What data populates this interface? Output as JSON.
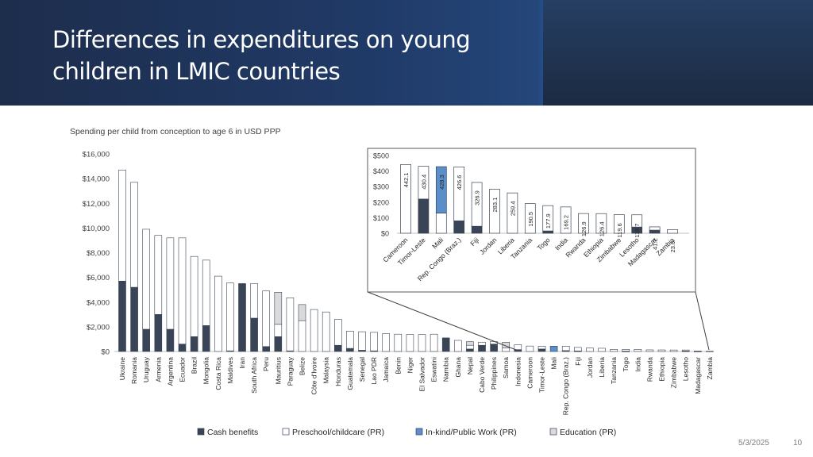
{
  "slide": {
    "title": "Differences in expenditures on young children in LMIC countries",
    "date": "5/3/2025",
    "page_number": "10"
  },
  "colors": {
    "cash": "#3a4457",
    "preschool": "#ffffff",
    "inkind": "#5b8fc9",
    "education": "#d9dadc"
  },
  "chart_data": [
    {
      "type": "bar",
      "stacked": true,
      "title": "Spending per child from conception to age 6 in USD PPP",
      "xlabel": "",
      "ylabel": "",
      "ylim": [
        0,
        16000
      ],
      "yticks": [
        "$0",
        "$2,000",
        "$4,000",
        "$6,000",
        "$8,000",
        "$10,000",
        "$12,000",
        "$14,000",
        "$16,000"
      ],
      "legend_position": "bottom",
      "categories": [
        "Ukraine",
        "Romania",
        "Uruguay",
        "Armenia",
        "Argentina",
        "Ecuador",
        "Brazil",
        "Mongolia",
        "Costa Rica",
        "Maldives",
        "Iran",
        "South Africa",
        "Peru",
        "Mauritius",
        "Paraguay",
        "Belize",
        "Côte d'Ivoire",
        "Malaysia",
        "Honduras",
        "Guatemala",
        "Senegal",
        "Lao PDR",
        "Jamaica",
        "Benin",
        "Niger",
        "El Salvador",
        "Eswatini",
        "Namibia",
        "Ghana",
        "Nepal",
        "Cabo Verde",
        "Philippines",
        "Samoa",
        "Indonesia",
        "Cameroon",
        "Timor-Leste",
        "Mali",
        "Rep. Congo (Braz.)",
        "Fiji",
        "Jordan",
        "Liberia",
        "Tanzania",
        "Togo",
        "India",
        "Rwanda",
        "Ethiopia",
        "Zimbabwe",
        "Lesotho",
        "Madagascar",
        "Zambia"
      ],
      "series": [
        {
          "name": "Cash benefits",
          "values": [
            5700,
            5200,
            1800,
            3000,
            1800,
            600,
            1200,
            2100,
            0,
            50,
            5500,
            2700,
            400,
            1200,
            50,
            0,
            0,
            0,
            500,
            250,
            100,
            50,
            0,
            0,
            0,
            0,
            0,
            1100,
            0,
            200,
            500,
            600,
            0,
            150,
            0,
            200,
            0,
            70,
            40,
            0,
            0,
            0,
            20,
            0,
            0,
            0,
            0,
            40,
            20,
            0
          ]
        },
        {
          "name": "Preschool/childcare (PR)",
          "values": [
            9000,
            8500,
            8100,
            6400,
            7400,
            8600,
            6500,
            5300,
            6100,
            5500,
            0,
            2800,
            4500,
            1000,
            4300,
            2500,
            3400,
            3200,
            2100,
            1400,
            1500,
            1500,
            1450,
            1400,
            1380,
            1380,
            1400,
            0,
            900,
            300,
            250,
            200,
            300,
            400,
            440,
            230,
            0,
            360,
            290,
            280,
            260,
            170,
            150,
            170,
            130,
            125,
            120,
            80,
            20,
            25
          ]
        },
        {
          "name": "In-kind/Public Work (PR)",
          "values": [
            0,
            0,
            0,
            0,
            0,
            0,
            0,
            0,
            0,
            0,
            0,
            0,
            0,
            0,
            0,
            0,
            0,
            0,
            0,
            0,
            0,
            0,
            0,
            0,
            0,
            0,
            0,
            0,
            0,
            0,
            0,
            0,
            0,
            0,
            0,
            0,
            430,
            0,
            0,
            0,
            0,
            0,
            0,
            0,
            0,
            0,
            0,
            0,
            0,
            0
          ]
        },
        {
          "name": "Education (PR)",
          "values": [
            0,
            0,
            0,
            0,
            0,
            0,
            0,
            0,
            0,
            0,
            0,
            0,
            0,
            2600,
            0,
            1300,
            0,
            0,
            0,
            0,
            0,
            0,
            0,
            0,
            0,
            0,
            0,
            0,
            0,
            300,
            0,
            0,
            450,
            0,
            0,
            0,
            0,
            0,
            0,
            0,
            0,
            0,
            0,
            0,
            0,
            0,
            0,
            0,
            0,
            0
          ]
        }
      ]
    },
    {
      "type": "bar",
      "stacked": true,
      "title": "",
      "xlabel": "",
      "ylabel": "",
      "ylim": [
        0,
        500
      ],
      "yticks": [
        "$0",
        "$100",
        "$200",
        "$300",
        "$400",
        "$500"
      ],
      "categories": [
        "Cameroon",
        "Timor-Leste",
        "Mali",
        "Rep. Congo (Braz.)",
        "Fiji",
        "Jordan",
        "Liberia",
        "Tanzania",
        "Togo",
        "India",
        "Rwanda",
        "Ethiopia",
        "Zimbabwe",
        "Lesotho",
        "Madagascar",
        "Zambia"
      ],
      "totals": [
        "442.1",
        "430.4",
        "428.3",
        "426.6",
        "326.9",
        "283.1",
        "259.4",
        "190.5",
        "177.9",
        "169.2",
        "126.9",
        "126.4",
        "119.6",
        "118.7",
        "41.2",
        "23.6"
      ],
      "series": [
        {
          "name": "Cash benefits",
          "values": [
            0,
            220,
            0,
            80,
            45,
            0,
            0,
            0,
            15,
            0,
            0,
            0,
            0,
            40,
            20,
            0
          ]
        },
        {
          "name": "Preschool/childcare (PR)",
          "values": [
            442.1,
            210.4,
            130,
            346.6,
            281.9,
            283.1,
            259.4,
            190.5,
            162.9,
            169.2,
            126.9,
            126.4,
            119.6,
            78.7,
            21.2,
            23.6
          ]
        },
        {
          "name": "In-kind/Public Work (PR)",
          "values": [
            0,
            0,
            298.3,
            0,
            0,
            0,
            0,
            0,
            0,
            0,
            0,
            0,
            0,
            0,
            0,
            0
          ]
        },
        {
          "name": "Education (PR)",
          "values": [
            0,
            0,
            0,
            0,
            0,
            0,
            0,
            0,
            0,
            0,
            0,
            0,
            0,
            0,
            0,
            0
          ]
        }
      ]
    }
  ]
}
